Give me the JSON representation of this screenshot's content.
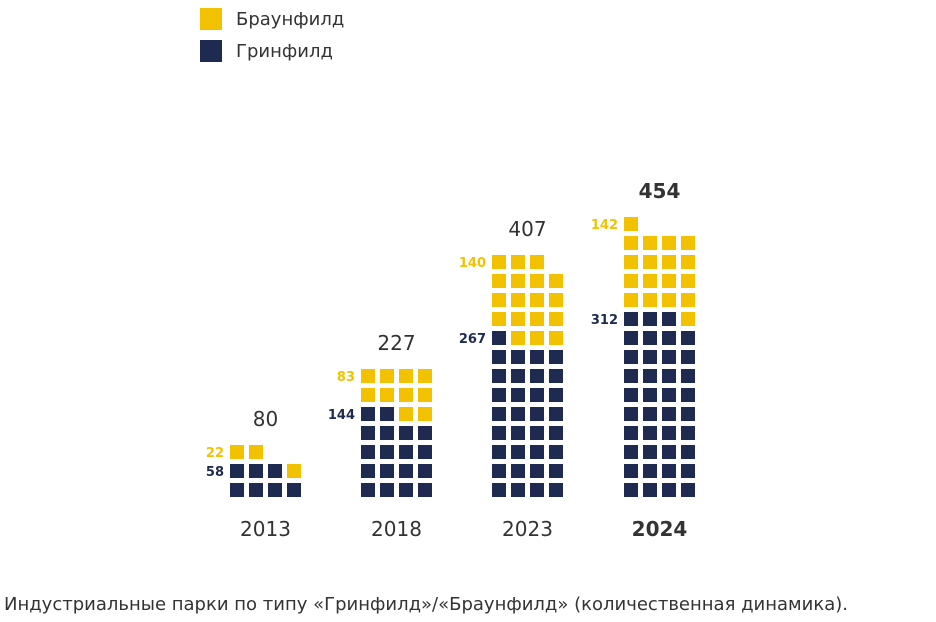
{
  "caption": "Индустриальные парки по типу «Гринфилд»/«Браунфилд» (количественная динамика).",
  "colors": {
    "brownfield": "#f2c200",
    "greenfield": "#1e2a50",
    "text": "#333333"
  },
  "chart_data": {
    "type": "waffle",
    "unit_value": 8,
    "columns_per_row": 4,
    "legend": [
      {
        "key": "brownfield",
        "label": "Браунфилд"
      },
      {
        "key": "greenfield",
        "label": "Гринфилд"
      }
    ],
    "categories": [
      "2013",
      "2018",
      "2023",
      "2024"
    ],
    "highlight_category": "2024",
    "series": [
      {
        "name": "Гринфилд",
        "key": "greenfield",
        "values": [
          58,
          144,
          267,
          312
        ]
      },
      {
        "name": "Браунфилд",
        "key": "brownfield",
        "values": [
          22,
          83,
          140,
          142
        ]
      }
    ],
    "totals": [
      80,
      227,
      407,
      454
    ]
  }
}
